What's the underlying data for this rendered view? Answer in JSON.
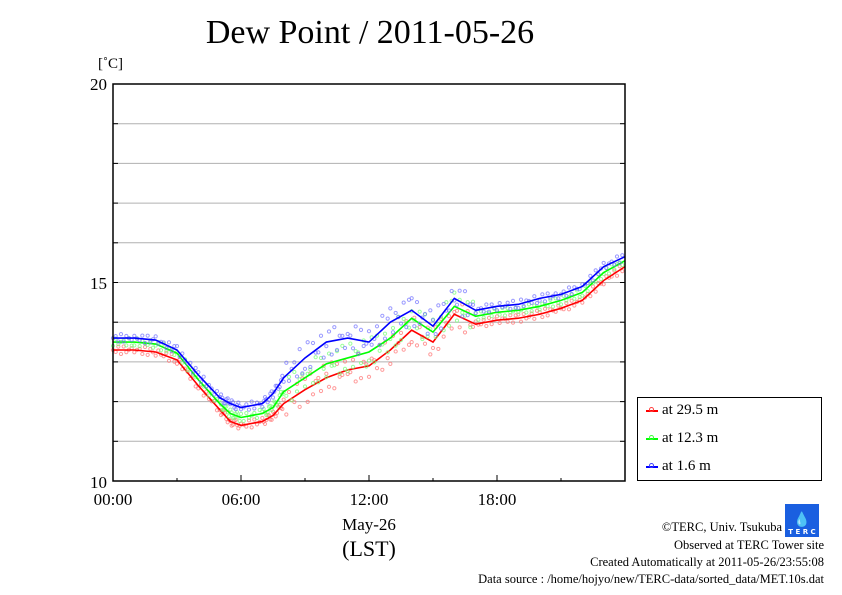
{
  "chart_data": {
    "type": "line",
    "title": "Dew Point / 2011-05-26",
    "ylabel": "[˚C]",
    "xlabel": "May-26",
    "xlabel2": "(LST)",
    "ylim": [
      10,
      20
    ],
    "xlim_hours": [
      0,
      24
    ],
    "yticks": [
      "10",
      "15",
      "20"
    ],
    "xticks": [
      {
        "h": 0,
        "label": "00:00"
      },
      {
        "h": 6,
        "label": "06:00"
      },
      {
        "h": 12,
        "label": "12:00"
      },
      {
        "h": 18,
        "label": "18:00"
      }
    ],
    "grid": true,
    "legend_position": "bottom-right outside",
    "x_hours": [
      0,
      1,
      2,
      3,
      4,
      5,
      5.5,
      6,
      7,
      7.5,
      8,
      9,
      10,
      11,
      12,
      13,
      14,
      15,
      16,
      17,
      18,
      19,
      20,
      21,
      22,
      23,
      24
    ],
    "series": [
      {
        "name": "at 29.5 m",
        "color": "#ff0000",
        "values": [
          13.3,
          13.3,
          13.25,
          13.05,
          12.4,
          11.8,
          11.5,
          11.4,
          11.5,
          11.65,
          11.95,
          12.3,
          12.6,
          12.8,
          12.9,
          13.3,
          13.8,
          13.5,
          14.2,
          13.95,
          14.05,
          14.1,
          14.2,
          14.35,
          14.55,
          15.05,
          15.4
        ]
      },
      {
        "name": "at 12.3 m",
        "color": "#00ff00",
        "values": [
          13.5,
          13.5,
          13.45,
          13.22,
          12.55,
          11.95,
          11.7,
          11.6,
          11.7,
          11.85,
          12.25,
          12.6,
          12.95,
          13.1,
          13.25,
          13.6,
          14.1,
          13.75,
          14.4,
          14.15,
          14.25,
          14.3,
          14.4,
          14.55,
          14.75,
          15.25,
          15.55
        ]
      },
      {
        "name": "at 1.6 m",
        "color": "#0000ff",
        "values": [
          13.6,
          13.6,
          13.55,
          13.3,
          12.67,
          12.1,
          11.95,
          11.85,
          11.95,
          12.2,
          12.6,
          13.1,
          13.5,
          13.6,
          13.5,
          14.0,
          14.3,
          13.9,
          14.6,
          14.3,
          14.4,
          14.45,
          14.6,
          14.7,
          14.9,
          15.4,
          15.65
        ]
      }
    ]
  },
  "footer": {
    "copyright": "©TERC, Univ. Tsukuba",
    "observed": "Observed at TERC Tower site",
    "created": "Created Automatically at 2011-05-26/23:55:08",
    "source": "Data source : /home/hojyo/new/TERC-data/sorted_data/MET.10s.dat",
    "logo_text": "TERC"
  }
}
